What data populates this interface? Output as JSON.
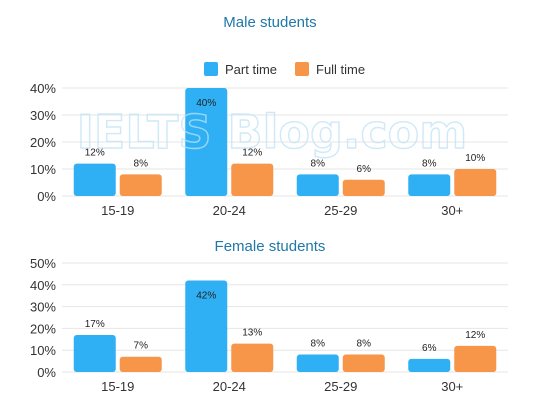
{
  "watermark": "IELTS Blog.com",
  "legend": [
    {
      "label": "Part time",
      "color": "#2fb0f5"
    },
    {
      "label": "Full time",
      "color": "#f79548"
    }
  ],
  "chart_data": [
    {
      "type": "bar",
      "title": "Male students",
      "categories": [
        "15-19",
        "20-24",
        "25-29",
        "30+"
      ],
      "series": [
        {
          "name": "Part time",
          "values": [
            12,
            40,
            8,
            8
          ],
          "labels": [
            "12%",
            "40%",
            "8%",
            "8%"
          ],
          "color": "#2fb0f5"
        },
        {
          "name": "Full time",
          "values": [
            8,
            12,
            6,
            10
          ],
          "labels": [
            "8%",
            "12%",
            "6%",
            "10%"
          ],
          "color": "#f79548"
        }
      ],
      "ylim": [
        0,
        40
      ],
      "yticks": [
        "0%",
        "10%",
        "20%",
        "30%",
        "40%"
      ],
      "grid": true,
      "legend_position": "top-center"
    },
    {
      "type": "bar",
      "title": "Female students",
      "categories": [
        "15-19",
        "20-24",
        "25-29",
        "30+"
      ],
      "series": [
        {
          "name": "Part time",
          "values": [
            17,
            42,
            8,
            6
          ],
          "labels": [
            "17%",
            "42%",
            "8%",
            "6%"
          ],
          "color": "#2fb0f5"
        },
        {
          "name": "Full time",
          "values": [
            7,
            13,
            8,
            12
          ],
          "labels": [
            "7%",
            "13%",
            "8%",
            "12%"
          ],
          "color": "#f79548"
        }
      ],
      "ylim": [
        0,
        50
      ],
      "yticks": [
        "0%",
        "10%",
        "20%",
        "30%",
        "40%",
        "50%"
      ],
      "grid": true
    }
  ]
}
